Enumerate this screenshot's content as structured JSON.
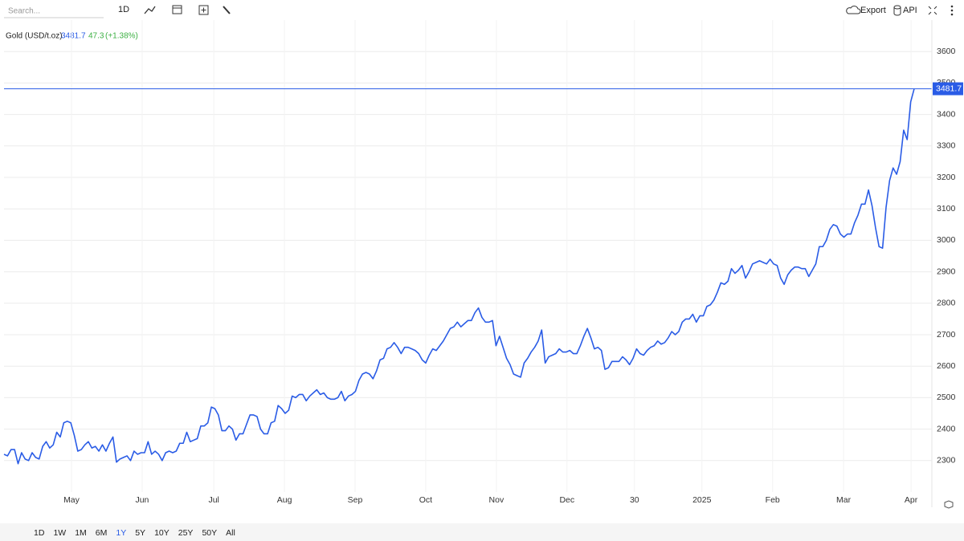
{
  "toolbar": {
    "search_placeholder": "Search...",
    "interval": "1D",
    "export": "Export",
    "api": "API"
  },
  "header": {
    "name": "Gold (USD/t.oz)",
    "change": 47.3,
    "change_pct": "(+1.38%)"
  },
  "ranges": {
    "items": [
      "1D",
      "1W",
      "1M",
      "6M",
      "1Y",
      "5Y",
      "10Y",
      "25Y",
      "50Y",
      "All"
    ],
    "active": 4
  },
  "chart_data": {
    "type": "line",
    "grid": true,
    "series": [
      {
        "name": "Gold (USD/t.oz)",
        "color": "#2a5ce6",
        "values": [
          2320,
          2315,
          2335,
          2335,
          2290,
          2325,
          2305,
          2300,
          2325,
          2310,
          2305,
          2345,
          2360,
          2340,
          2350,
          2390,
          2375,
          2420,
          2425,
          2420,
          2380,
          2330,
          2335,
          2350,
          2360,
          2340,
          2345,
          2330,
          2350,
          2330,
          2355,
          2375,
          2295,
          2305,
          2310,
          2315,
          2300,
          2330,
          2320,
          2325,
          2325,
          2360,
          2320,
          2330,
          2320,
          2300,
          2325,
          2330,
          2325,
          2330,
          2355,
          2355,
          2390,
          2360,
          2365,
          2370,
          2410,
          2410,
          2420,
          2470,
          2465,
          2445,
          2395,
          2395,
          2410,
          2400,
          2365,
          2385,
          2385,
          2415,
          2445,
          2445,
          2440,
          2400,
          2385,
          2385,
          2420,
          2425,
          2475,
          2465,
          2450,
          2460,
          2505,
          2500,
          2510,
          2510,
          2490,
          2505,
          2515,
          2525,
          2510,
          2515,
          2500,
          2495,
          2495,
          2500,
          2520,
          2490,
          2505,
          2510,
          2520,
          2555,
          2575,
          2580,
          2575,
          2560,
          2585,
          2620,
          2625,
          2655,
          2660,
          2675,
          2660,
          2640,
          2660,
          2660,
          2655,
          2650,
          2640,
          2620,
          2610,
          2635,
          2655,
          2650,
          2665,
          2680,
          2700,
          2720,
          2725,
          2740,
          2725,
          2735,
          2745,
          2745,
          2770,
          2785,
          2755,
          2740,
          2740,
          2745,
          2665,
          2695,
          2660,
          2625,
          2605,
          2575,
          2570,
          2565,
          2610,
          2625,
          2645,
          2660,
          2680,
          2715,
          2610,
          2630,
          2635,
          2640,
          2655,
          2645,
          2645,
          2650,
          2640,
          2640,
          2665,
          2695,
          2720,
          2690,
          2655,
          2660,
          2650,
          2590,
          2595,
          2615,
          2615,
          2615,
          2630,
          2620,
          2605,
          2625,
          2655,
          2640,
          2635,
          2650,
          2660,
          2665,
          2680,
          2670,
          2675,
          2690,
          2710,
          2700,
          2710,
          2740,
          2750,
          2750,
          2765,
          2740,
          2760,
          2760,
          2790,
          2795,
          2810,
          2835,
          2865,
          2860,
          2870,
          2910,
          2895,
          2905,
          2920,
          2880,
          2900,
          2925,
          2930,
          2935,
          2930,
          2925,
          2940,
          2925,
          2920,
          2880,
          2860,
          2890,
          2905,
          2915,
          2915,
          2910,
          2910,
          2885,
          2905,
          2925,
          2980,
          2980,
          3000,
          3035,
          3050,
          3045,
          3020,
          3010,
          3020,
          3020,
          3055,
          3080,
          3115,
          3115,
          3160,
          3110,
          3040,
          2980,
          2975,
          3105,
          3190,
          3230,
          3210,
          3250,
          3350,
          3320,
          3440,
          3481.7
        ]
      }
    ],
    "xlim": [
      0,
      259
    ],
    "xticks": [
      {
        "value": 19.2,
        "label": "May"
      },
      {
        "value": 39.3,
        "label": "Jun"
      },
      {
        "value": 59.7,
        "label": "Jul"
      },
      {
        "value": 79.8,
        "label": "Aug"
      },
      {
        "value": 99.9,
        "label": "Sep"
      },
      {
        "value": 120,
        "label": "Oct"
      },
      {
        "value": 140.1,
        "label": "Nov"
      },
      {
        "value": 160.2,
        "label": "Dec"
      },
      {
        "value": 179.4,
        "label": "30"
      },
      {
        "value": 198.6,
        "label": "2025"
      },
      {
        "value": 218.7,
        "label": "Feb"
      },
      {
        "value": 238.9,
        "label": "Mar"
      },
      {
        "value": 258.1,
        "label": "Apr"
      }
    ],
    "ylim": [
      2200,
      3700
    ],
    "yticks": [
      2300,
      2400,
      2500,
      2600,
      2700,
      2800,
      2900,
      3000,
      3100,
      3200,
      3300,
      3400,
      3500,
      3600
    ]
  }
}
